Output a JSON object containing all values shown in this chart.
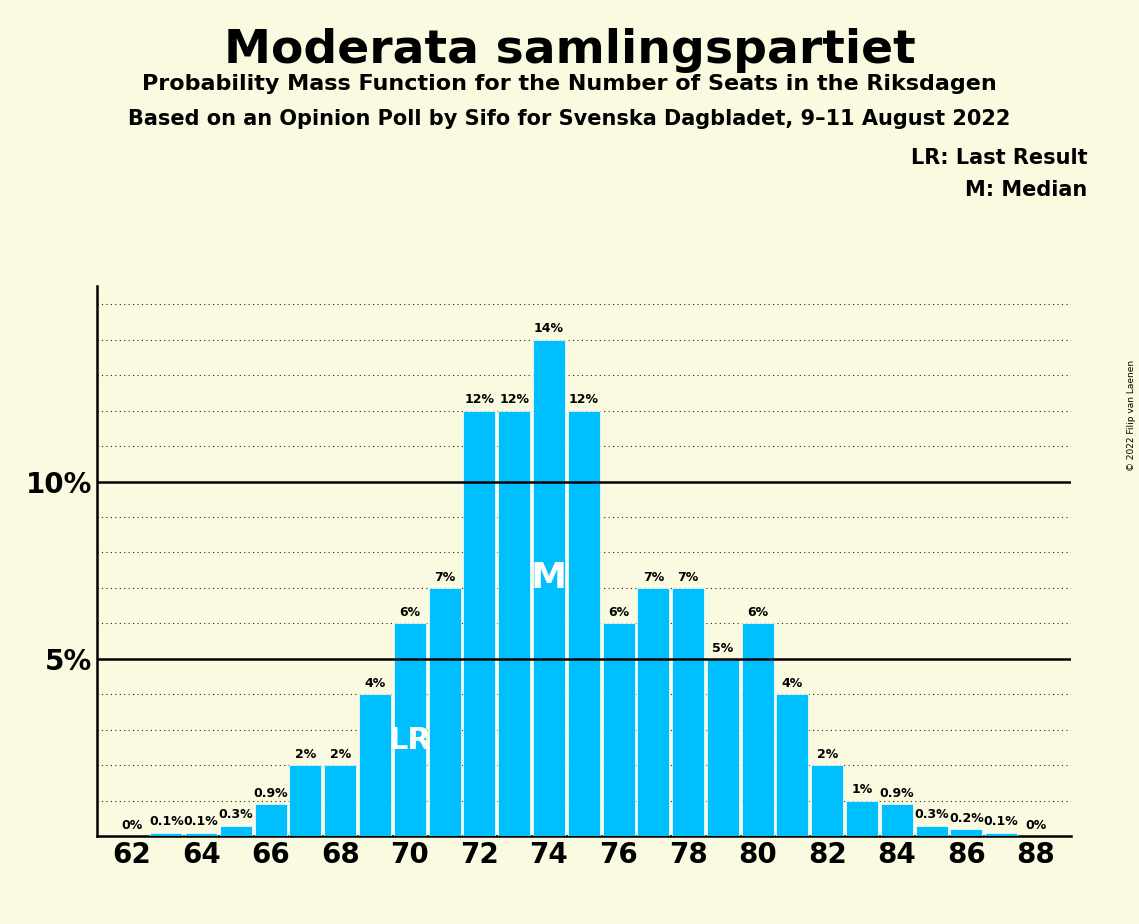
{
  "title": "Moderata samlingspartiet",
  "subtitle1": "Probability Mass Function for the Number of Seats in the Riksdagen",
  "subtitle2": "Based on an Opinion Poll by Sifo for Svenska Dagbladet, 9–11 August 2022",
  "copyright": "© 2022 Filip van Laenen",
  "seats": [
    62,
    63,
    64,
    65,
    66,
    67,
    68,
    69,
    70,
    71,
    72,
    73,
    74,
    75,
    76,
    77,
    78,
    79,
    80,
    81,
    82,
    83,
    84,
    85,
    86,
    87,
    88
  ],
  "probabilities": [
    0.0,
    0.1,
    0.1,
    0.3,
    0.9,
    2.0,
    2.0,
    4.0,
    6.0,
    7.0,
    12.0,
    12.0,
    14.0,
    12.0,
    6.0,
    7.0,
    7.0,
    5.0,
    6.0,
    4.0,
    2.0,
    1.0,
    0.9,
    0.3,
    0.2,
    0.1,
    0.0
  ],
  "bar_color": "#00BFFF",
  "background_color": "#FAFAE0",
  "last_result_seat": 70,
  "median_seat": 74,
  "lr_label": "LR",
  "m_label": "M",
  "legend_lr": "LR: Last Result",
  "legend_m": "M: Median",
  "ylim": [
    0,
    15.5
  ],
  "xlim": [
    61.0,
    89.0
  ],
  "xtick_positions": [
    62,
    64,
    66,
    68,
    70,
    72,
    74,
    76,
    78,
    80,
    82,
    84,
    86,
    88
  ],
  "bar_width": 0.92
}
